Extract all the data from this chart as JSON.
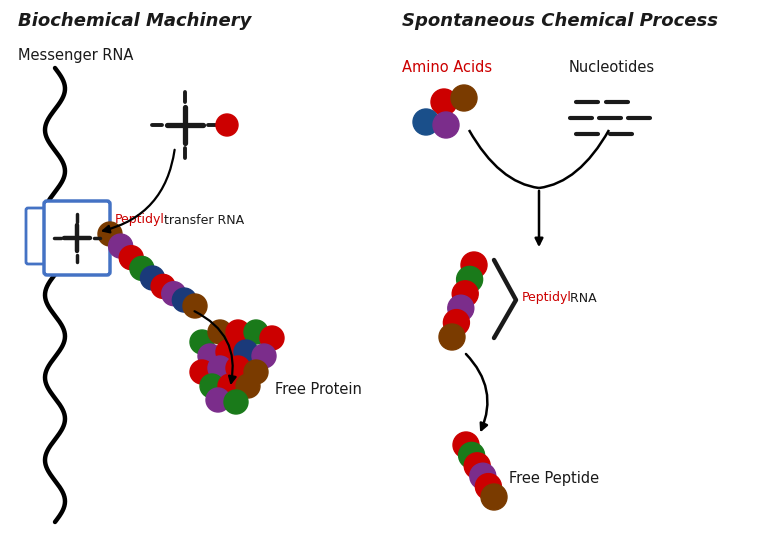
{
  "title_left": "Biochemical Machinery",
  "title_right": "Spontaneous Chemical Process",
  "label_mrna": "Messenger RNA",
  "label_amino": "Amino Acids",
  "label_nucleotides": "Nucleotides",
  "label_peptidyl_transfer_black": " transfer RNA",
  "label_peptidyl_red": "Peptidyl",
  "label_peptidyl_rna_black": " RNA",
  "label_free_protein": "Free Protein",
  "label_free_peptide": "Free Peptide",
  "bg_color": "#ffffff",
  "text_color": "#1a1a1a",
  "red_color": "#cc0000",
  "blue_color": "#1a4f8a",
  "purple_color": "#7b2d8b",
  "green_color": "#1a7a1a",
  "brown_color": "#7a3b00",
  "navy_color": "#1a3a7a",
  "title_fontsize": 13,
  "label_fontsize": 10.5,
  "dot_r": 0.13,
  "blue_box_color": "#4472C4"
}
